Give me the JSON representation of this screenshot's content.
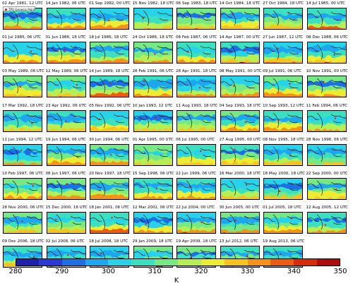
{
  "chart_data": {
    "type": "heatmap",
    "legend": {
      "marker_label": "TPV Genesis Point",
      "marker_color": "#e01010"
    },
    "colorbar": {
      "min": 280,
      "max": 350,
      "ticks": [
        280,
        290,
        300,
        310,
        320,
        330,
        340,
        350
      ],
      "unit": "K",
      "colors": [
        "#1f1fb0",
        "#2a3ad8",
        "#1d6fe6",
        "#1ea6f0",
        "#26d3e8",
        "#3be0c0",
        "#76e884",
        "#b6ee55",
        "#ecec33",
        "#f7c31e",
        "#f79219",
        "#ee5c12",
        "#d92a0c",
        "#b10b0b"
      ]
    },
    "panels": [
      "02 Apr 1981, 12 UTC",
      "14 Jan 1982, 06 UTC",
      "01 Sep 1982, 00 UTC",
      "15 Nov 1982, 18 UTC",
      "06 Sep 1983, 18 UTC",
      "14 Oct 1984, 18 UTC",
      "27 Oct 1984, 18 UTC",
      "14 Jul 1985, 00 UTC",
      "01 Jul 1985, 06 UTC",
      "01 Jun 1986, 18 UTC",
      "18 Jul 1986, 18 UTC",
      "24 Oct 1986, 18 UTC",
      "08 Feb 1987, 06 UTC",
      "14 Apr 1987, 00 UTC",
      "27 Jun 1987, 12 UTC",
      "08 Dec 1988, 06 UTC",
      "03 May 1989, 06 UTC",
      "12 May 1989, 06 UTC",
      "14 Jun 1989, 18 UTC",
      "28 Feb 1991, 06 UTC",
      "28 Apr 1991, 18 UTC",
      "08 May 1991, 00 UTC",
      "09 Jul 1991, 06 UTC",
      "10 Nov 1991, 00 UTC",
      "17 Mar 1992, 18 UTC",
      "23 Apr 1992, 06 UTC",
      "05 Nov 1992, 06 UTC",
      "10 Jan 1993, 12 UTC",
      "11 Aug 1993, 18 UTC",
      "04 Sep 1993, 18 UTC",
      "10 Sep 1993, 12 UTC",
      "11 Feb 1994, 06 UTC",
      "11 Jun 1994, 12 UTC",
      "19 Jun 1994, 06 UTC",
      "30 Jun 1994, 06 UTC",
      "01 Apr 1995, 00 UTC",
      "06 Jul 1995, 00 UTC",
      "27 Aug 1995, 00 UTC",
      "08 Nov 1995, 18 UTC",
      "28 Nov 1996, 06 UTC",
      "10 Feb 1997, 06 UTC",
      "08 Jun 1997, 06 UTC",
      "20 Nov 1997, 18 UTC",
      "15 Sep 1998, 06 UTC",
      "22 Jun 1999, 06 UTC",
      "16 Mar 2000, 18 UTC",
      "18 May 2000, 18 UTC",
      "22 Sep 2000, 00 UTC",
      "28 Nov 2000, 06 UTC",
      "15 Dec 2000, 18 UTC",
      "18 Jan 2001, 06 UTC",
      "12 Mar 2002, 06 UTC",
      "22 Jul 2004, 00 UTC",
      "30 Jun 2005, 00 UTC",
      "01 Jul 2005, 18 UTC",
      "12 Aug 2005, 12 UTC",
      "09 Dec 2006, 18 UTC",
      "02 Jul 2008, 06 UTC",
      "18 Jul 2008, 18 UTC",
      "29 Jan 2009, 18 UTC",
      "19 Apr 2009, 18 UTC",
      "13 Jul 2012, 06 UTC",
      "19 Aug 2013, 06 UTC"
    ]
  }
}
